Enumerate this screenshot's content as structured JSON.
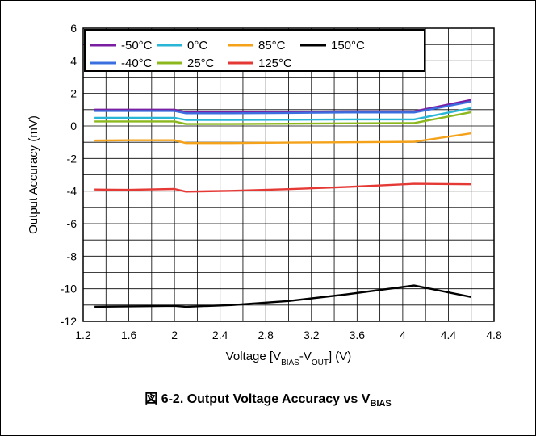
{
  "caption": {
    "prefix": "図 6-2. Output Voltage Accuracy vs V",
    "sub": "BIAS"
  },
  "chart_data": {
    "type": "line",
    "xlabel": {
      "pre": "Voltage [V",
      "sub1": "BIAS",
      "mid": "-V",
      "sub2": "OUT",
      "post": "] (V)"
    },
    "ylabel": "Output Accuracy (mV)",
    "xlim": [
      1.2,
      4.8
    ],
    "ylim": [
      -12,
      6
    ],
    "x_ticks": [
      1.2,
      1.6,
      2,
      2.4,
      2.8,
      3.2,
      3.6,
      4,
      4.4,
      4.8
    ],
    "x_tick_labels": [
      "1.2",
      "1.6",
      "2",
      "2.4",
      "2.8",
      "3.2",
      "3.6",
      "4",
      "4.4",
      "4.8"
    ],
    "y_ticks": [
      -12,
      -10,
      -8,
      -6,
      -4,
      -2,
      0,
      2,
      4,
      6
    ],
    "y_tick_labels": [
      "-12",
      "-10",
      "-8",
      "-6",
      "-4",
      "-2",
      "0",
      "2",
      "4",
      "6"
    ],
    "grid": true,
    "legend_position": "top-left",
    "series": [
      {
        "name": "-50°C",
        "color": "#7b1fa2",
        "x": [
          1.3,
          1.5,
          1.8,
          2.0,
          2.1,
          2.5,
          3.0,
          3.5,
          4.1,
          4.6
        ],
        "y": [
          1.0,
          1.0,
          1.0,
          1.0,
          0.85,
          0.85,
          0.87,
          0.9,
          0.9,
          1.6
        ]
      },
      {
        "name": "-40°C",
        "color": "#3b6fe0",
        "x": [
          1.3,
          1.5,
          1.8,
          2.0,
          2.1,
          2.5,
          3.0,
          3.5,
          4.1,
          4.6
        ],
        "y": [
          0.92,
          0.92,
          0.92,
          0.92,
          0.78,
          0.78,
          0.8,
          0.83,
          0.83,
          1.5
        ]
      },
      {
        "name": "0°C",
        "color": "#29b6d6",
        "x": [
          1.3,
          1.5,
          1.8,
          2.0,
          2.1,
          2.5,
          3.0,
          3.5,
          4.1,
          4.6
        ],
        "y": [
          0.5,
          0.5,
          0.5,
          0.5,
          0.37,
          0.37,
          0.38,
          0.4,
          0.4,
          1.1
        ]
      },
      {
        "name": "25°C",
        "color": "#8cb81e",
        "x": [
          1.3,
          1.5,
          1.8,
          2.0,
          2.1,
          2.5,
          3.0,
          3.5,
          4.1,
          4.6
        ],
        "y": [
          0.28,
          0.28,
          0.28,
          0.28,
          0.12,
          0.12,
          0.14,
          0.16,
          0.18,
          0.85
        ]
      },
      {
        "name": "85°C",
        "color": "#f5a21b",
        "x": [
          1.3,
          1.6,
          2.0,
          2.1,
          2.5,
          3.0,
          3.5,
          4.1,
          4.6
        ],
        "y": [
          -0.9,
          -0.88,
          -0.88,
          -1.05,
          -1.05,
          -1.02,
          -1.0,
          -0.97,
          -0.45
        ]
      },
      {
        "name": "125°C",
        "color": "#e53935",
        "x": [
          1.3,
          1.6,
          2.0,
          2.1,
          2.5,
          3.0,
          3.5,
          4.1,
          4.6
        ],
        "y": [
          -3.9,
          -3.92,
          -3.87,
          -4.03,
          -3.98,
          -3.88,
          -3.75,
          -3.55,
          -3.58
        ]
      },
      {
        "name": "150°C",
        "color": "#000000",
        "x": [
          1.3,
          1.6,
          2.0,
          2.1,
          2.5,
          3.0,
          3.5,
          4.1,
          4.6
        ],
        "y": [
          -11.1,
          -11.08,
          -11.05,
          -11.1,
          -11.0,
          -10.75,
          -10.35,
          -9.8,
          -10.5
        ]
      }
    ]
  }
}
